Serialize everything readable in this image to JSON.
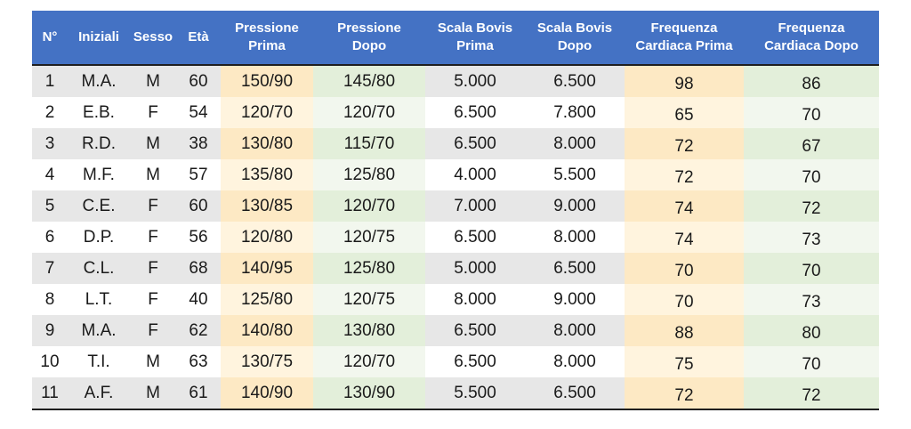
{
  "headers": [
    "N°",
    "Iniziali",
    "Sesso",
    "Età",
    "Pressione\nPrima",
    "Pressione\nDopo",
    "Scala Bovis\nPrima",
    "Scala Bovis\nDopo",
    "Frequenza\nCardiaca Prima",
    "Frequenza\nCardiaca Dopo"
  ],
  "rows": [
    [
      "1",
      "M.A.",
      "M",
      "60",
      "150/90",
      "145/80",
      "5.000",
      "6.500",
      "98",
      "86"
    ],
    [
      "2",
      "E.B.",
      "F",
      "54",
      "120/70",
      "120/70",
      "6.500",
      "7.800",
      "65",
      "70"
    ],
    [
      "3",
      "R.D.",
      "M",
      "38",
      "130/80",
      "115/70",
      "6.500",
      "8.000",
      "72",
      "67"
    ],
    [
      "4",
      "M.F.",
      "M",
      "57",
      "135/80",
      "125/80",
      "4.000",
      "5.500",
      "72",
      "70"
    ],
    [
      "5",
      "C.E.",
      "F",
      "60",
      "130/85",
      "120/70",
      "7.000",
      "9.000",
      "74",
      "72"
    ],
    [
      "6",
      "D.P.",
      "F",
      "56",
      "120/80",
      "120/75",
      "6.500",
      "8.000",
      "74",
      "73"
    ],
    [
      "7",
      "C.L.",
      "F",
      "68",
      "140/95",
      "125/80",
      "5.000",
      "6.500",
      "70",
      "70"
    ],
    [
      "8",
      "L.T.",
      "F",
      "40",
      "125/80",
      "120/75",
      "8.000",
      "9.000",
      "70",
      "73"
    ],
    [
      "9",
      "M.A.",
      "F",
      "62",
      "140/80",
      "130/80",
      "6.500",
      "8.000",
      "88",
      "80"
    ],
    [
      "10",
      "T.I.",
      "M",
      "63",
      "130/75",
      "120/70",
      "6.500",
      "8.000",
      "75",
      "70"
    ],
    [
      "11",
      "A.F.",
      "M",
      "61",
      "140/90",
      "130/90",
      "5.500",
      "6.500",
      "72",
      "72"
    ]
  ],
  "colors": {
    "header_bg": "#4472c4",
    "header_text": "#ffffff",
    "stripe": "#e7e7e7",
    "before_tint": "#fde9c4",
    "after_tint": "#e3efda"
  }
}
